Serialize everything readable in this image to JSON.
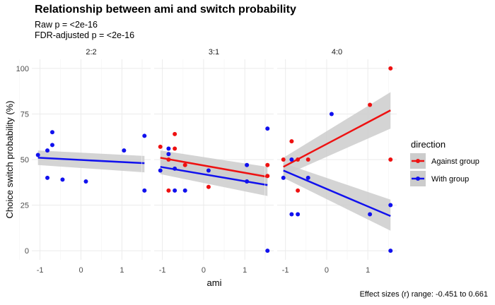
{
  "title": "Relationship between ami and switch probability",
  "subtitle_raw": "Raw p = <2e-16",
  "subtitle_fdr": "FDR-adjusted p = <2e-16",
  "caption": "Effect sizes (r) range: -0.451 to 0.661",
  "colors": {
    "against": "#ee1111",
    "with": "#1111ee",
    "band": "#cccccc",
    "grid": "#ebebeb"
  },
  "chart_data": {
    "type": "scatter",
    "xlabel": "ami",
    "ylabel": "Choice switch probability (%)",
    "xlim": [
      -1.2,
      1.7
    ],
    "ylim": [
      -5,
      105
    ],
    "x_ticks": [
      -1,
      0,
      1
    ],
    "y_ticks": [
      0,
      25,
      50,
      75,
      100
    ],
    "x_tick_labels": [
      "-1",
      "0",
      "1"
    ],
    "y_tick_labels": [
      "0",
      "25",
      "50",
      "75",
      "100"
    ],
    "legend": {
      "title": "direction",
      "position": "right",
      "entries": [
        {
          "label": "Against group",
          "key": "against"
        },
        {
          "label": "With group",
          "key": "with"
        }
      ]
    },
    "facets": [
      {
        "label": "2:2",
        "series": [
          {
            "name": "With group",
            "key": "with",
            "points": [
              [
                -1.05,
                52.5
              ],
              [
                -0.82,
                55
              ],
              [
                -0.7,
                58
              ],
              [
                -0.7,
                65
              ],
              [
                -0.82,
                40
              ],
              [
                -0.45,
                39
              ],
              [
                0.12,
                38
              ],
              [
                1.05,
                55
              ],
              [
                1.55,
                63
              ],
              [
                1.55,
                33
              ]
            ],
            "fit": {
              "x": [
                -1.05,
                1.55
              ],
              "y": [
                51,
                48
              ],
              "ci_low": [
                47,
                43
              ],
              "ci_high": [
                55,
                52
              ]
            }
          }
        ]
      },
      {
        "label": "3:1",
        "series": [
          {
            "name": "Against group",
            "key": "against",
            "points": [
              [
                -1.05,
                57
              ],
              [
                -0.85,
                50
              ],
              [
                -0.85,
                33
              ],
              [
                -0.7,
                64
              ],
              [
                -0.7,
                56
              ],
              [
                -0.45,
                47
              ],
              [
                0.12,
                35
              ],
              [
                1.55,
                47
              ],
              [
                1.55,
                41
              ]
            ],
            "fit": {
              "x": [
                -1.05,
                1.55
              ],
              "y": [
                51,
                40.5
              ],
              "ci_low": [
                47,
                35
              ],
              "ci_high": [
                55,
                46
              ]
            }
          },
          {
            "name": "With group",
            "key": "with",
            "points": [
              [
                -1.05,
                44
              ],
              [
                -0.85,
                56
              ],
              [
                -0.85,
                53
              ],
              [
                -0.7,
                45
              ],
              [
                -0.7,
                33
              ],
              [
                -0.45,
                33
              ],
              [
                0.12,
                44
              ],
              [
                1.05,
                47
              ],
              [
                1.05,
                38
              ],
              [
                1.55,
                67
              ],
              [
                1.55,
                0
              ]
            ],
            "fit": {
              "x": [
                -1.05,
                1.55
              ],
              "y": [
                46,
                36
              ],
              "ci_low": [
                42,
                30
              ],
              "ci_high": [
                50,
                42
              ]
            }
          }
        ]
      },
      {
        "label": "4:0",
        "series": [
          {
            "name": "Against group",
            "key": "against",
            "points": [
              [
                -1.05,
                50
              ],
              [
                -0.85,
                60
              ],
              [
                -0.7,
                50
              ],
              [
                -0.7,
                33
              ],
              [
                -0.45,
                50
              ],
              [
                1.05,
                80
              ],
              [
                1.55,
                100
              ],
              [
                1.55,
                50
              ]
            ],
            "fit": {
              "x": [
                -1.05,
                1.55
              ],
              "y": [
                46,
                77
              ],
              "ci_low": [
                41,
                67
              ],
              "ci_high": [
                51,
                87
              ]
            }
          },
          {
            "name": "With group",
            "key": "with",
            "points": [
              [
                -1.05,
                40
              ],
              [
                -0.85,
                50
              ],
              [
                -0.85,
                20
              ],
              [
                -0.7,
                20
              ],
              [
                -0.45,
                40
              ],
              [
                0.12,
                75
              ],
              [
                1.05,
                20
              ],
              [
                1.55,
                25
              ],
              [
                1.55,
                0
              ]
            ],
            "fit": {
              "x": [
                -1.05,
                1.55
              ],
              "y": [
                44,
                19
              ],
              "ci_low": [
                40,
                11
              ],
              "ci_high": [
                48,
                28
              ]
            }
          }
        ]
      }
    ]
  }
}
